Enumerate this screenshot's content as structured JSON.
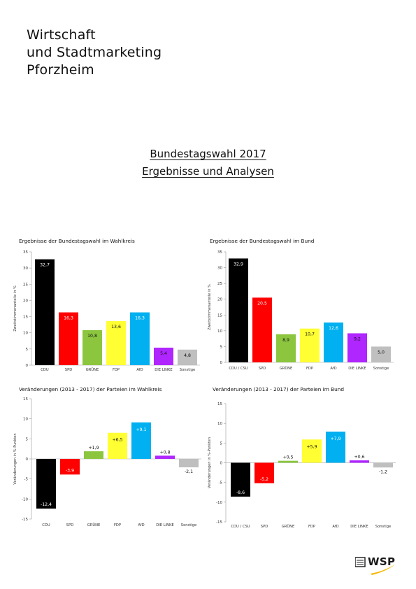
{
  "header": {
    "org_line1": "Wirtschaft",
    "org_line2": "und Stadtmarketing",
    "org_line3": "Pforzheim",
    "title_line1": "Bundestagswahl 2017",
    "title_line2": "Ergebnisse und Analysen"
  },
  "colors": {
    "CDU": "#000000",
    "SPD": "#ff0000",
    "GRUENE": "#8cc63f",
    "FDP": "#ffff33",
    "AFD": "#00b0f0",
    "LINKE": "#b026ff",
    "SONSTIGE": "#bfbfbf"
  },
  "logo": {
    "text": "WSP"
  },
  "chart_data": [
    {
      "id": "c1",
      "type": "bar",
      "title": "Ergebnisse der Bundestagswahl im Wahlkreis",
      "ylabel": "Zweitstimmenanteile in %",
      "ylim": [
        0,
        35
      ],
      "yticks": [
        "0",
        "5",
        "10",
        "15",
        "20",
        "25",
        "30",
        "35"
      ],
      "categories": [
        "CDU",
        "SPD",
        "GRÜNE",
        "FDP",
        "AfD",
        "DIE LINKE",
        "Sonstige"
      ],
      "values": [
        32.7,
        16.3,
        10.8,
        13.6,
        16.3,
        5.4,
        4.8
      ],
      "labels": [
        "32,7",
        "16,3",
        "10,8",
        "13,6",
        "16,3",
        "5,4",
        "4,8"
      ],
      "color_keys": [
        "CDU",
        "SPD",
        "GRUENE",
        "FDP",
        "AFD",
        "LINKE",
        "SONSTIGE"
      ],
      "grid": false
    },
    {
      "id": "c2",
      "type": "bar",
      "title": "Ergebnisse der Bundestagswahl im Bund",
      "ylabel": "Zweitstimmenanteile in %",
      "ylim": [
        0,
        35
      ],
      "yticks": [
        "0",
        "5",
        "10",
        "15",
        "20",
        "25",
        "30",
        "35"
      ],
      "categories": [
        "CDU / CSU",
        "SPD",
        "GRÜNE",
        "FDP",
        "AfD",
        "DIE LINKE",
        "Sonstige"
      ],
      "values": [
        32.9,
        20.5,
        8.9,
        10.7,
        12.6,
        9.2,
        5.0
      ],
      "labels": [
        "32,9",
        "20,5",
        "8,9",
        "10,7",
        "12,6",
        "9,2",
        "5,0"
      ],
      "color_keys": [
        "CDU",
        "SPD",
        "GRUENE",
        "FDP",
        "AFD",
        "LINKE",
        "SONSTIGE"
      ],
      "grid": false
    },
    {
      "id": "c3",
      "type": "bar",
      "title": "Veränderungen (2013 - 2017) der Parteien im Wahlkreis",
      "ylabel": "Veränderungen in %-Punkten",
      "ylim": [
        -15,
        15
      ],
      "yticks": [
        "-15",
        "-10",
        "-5",
        "0",
        "5",
        "10",
        "15"
      ],
      "categories": [
        "CDU",
        "SPD",
        "GRÜNE",
        "FDP",
        "AfD",
        "DIE LINKE",
        "Sonstige"
      ],
      "values": [
        -12.4,
        -3.9,
        1.9,
        6.5,
        9.1,
        0.8,
        -2.1
      ],
      "labels": [
        "-12,4",
        "-3,9",
        "+1,9",
        "+6,5",
        "+9,1",
        "+0,8",
        "-2,1"
      ],
      "color_keys": [
        "CDU",
        "SPD",
        "GRUENE",
        "FDP",
        "AFD",
        "LINKE",
        "SONSTIGE"
      ],
      "grid": false
    },
    {
      "id": "c4",
      "type": "bar",
      "title": "Veränderungen (2013 - 2017) der Parteien im Bund",
      "ylabel": "Veränderungen in %-Punkten",
      "ylim": [
        -15,
        15
      ],
      "yticks": [
        "-15",
        "-10",
        "-5",
        "0",
        "5",
        "10",
        "15"
      ],
      "categories": [
        "CDU / CSU",
        "SPD",
        "GRÜNE",
        "FDP",
        "AfD",
        "DIE LINKE",
        "Sonstige"
      ],
      "values": [
        -8.6,
        -5.2,
        0.5,
        5.9,
        7.9,
        0.6,
        -1.2
      ],
      "labels": [
        "-8,6",
        "-5,2",
        "+0,5",
        "+5,9",
        "+7,9",
        "+0,6",
        "-1,2"
      ],
      "color_keys": [
        "CDU",
        "SPD",
        "GRUENE",
        "FDP",
        "AFD",
        "LINKE",
        "SONSTIGE"
      ],
      "grid": false
    }
  ]
}
